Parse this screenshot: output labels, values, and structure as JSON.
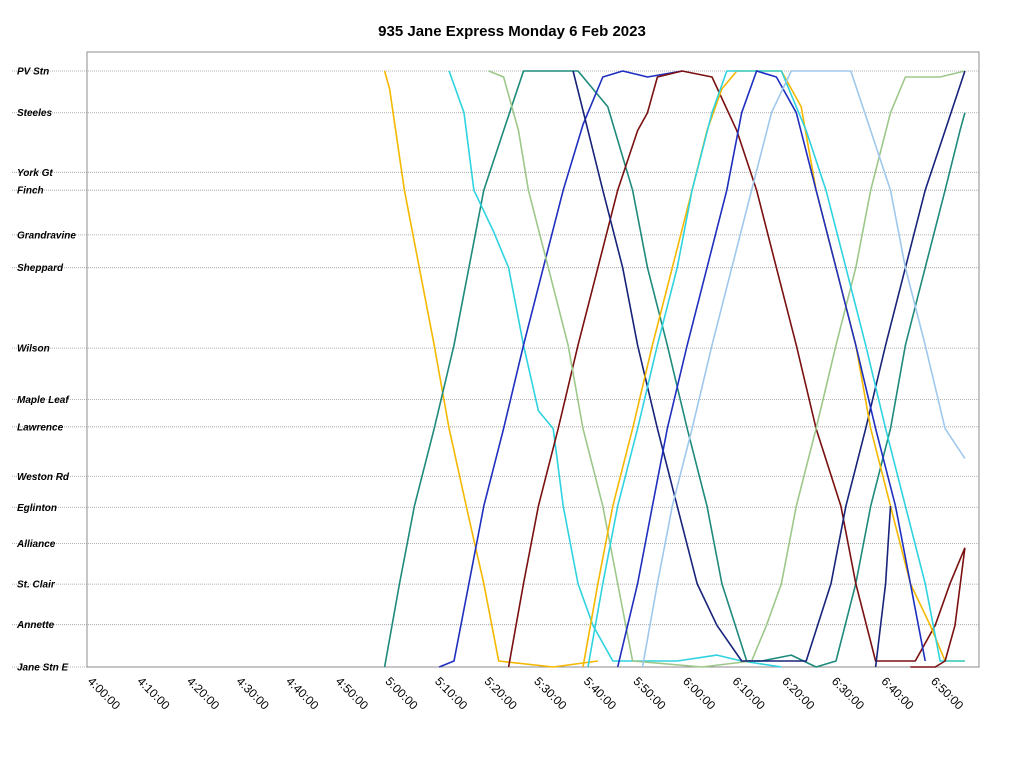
{
  "chart_data": {
    "type": "line",
    "title": "935 Jane Express Monday 6 Feb 2023",
    "xlabel": "",
    "ylabel": "",
    "x_axis": {
      "min": "4:00:00",
      "max": "6:57:00",
      "tick_labels": [
        "4:00:00",
        "4:10:00",
        "4:20:00",
        "4:30:00",
        "4:40:00",
        "4:50:00",
        "5:00:00",
        "5:10:00",
        "5:20:00",
        "5:30:00",
        "5:40:00",
        "5:50:00",
        "6:00:00",
        "6:10:00",
        "6:20:00",
        "6:30:00",
        "6:40:00",
        "6:50:00"
      ]
    },
    "grid": true,
    "legend": "none",
    "stops": [
      {
        "name": "PV Stn",
        "pos": 0
      },
      {
        "name": "Steeles",
        "pos": 0.07
      },
      {
        "name": "York Gt",
        "pos": 0.17
      },
      {
        "name": "Finch",
        "pos": 0.2
      },
      {
        "name": "Grandravine",
        "pos": 0.275
      },
      {
        "name": "Sheppard",
        "pos": 0.33
      },
      {
        "name": "Wilson",
        "pos": 0.465
      },
      {
        "name": "Maple Leaf",
        "pos": 0.551
      },
      {
        "name": "Lawrence",
        "pos": 0.597
      },
      {
        "name": "Weston Rd",
        "pos": 0.68
      },
      {
        "name": "Eglinton",
        "pos": 0.732
      },
      {
        "name": "Alliance",
        "pos": 0.793
      },
      {
        "name": "St. Clair",
        "pos": 0.861
      },
      {
        "name": "Annette",
        "pos": 0.929
      },
      {
        "name": "Jane Stn E",
        "pos": 1
      }
    ],
    "series": [
      {
        "color": "#f5b800",
        "points": [
          [
            "5:00:00",
            0
          ],
          [
            "5:01:00",
            0.03
          ],
          [
            "5:04:00",
            0.2
          ],
          [
            "5:07:00",
            0.33
          ],
          [
            "5:10:00",
            0.46
          ],
          [
            "5:13:00",
            0.6
          ],
          [
            "5:17:00",
            0.75
          ],
          [
            "5:20:00",
            0.86
          ],
          [
            "5:23:00",
            0.99
          ],
          [
            "5:34:00",
            1
          ],
          [
            "5:43:00",
            0.99
          ]
        ]
      },
      {
        "color": "#1f8a7c",
        "points": [
          [
            "5:00:00",
            1
          ],
          [
            "5:03:00",
            0.86
          ],
          [
            "5:06:00",
            0.73
          ],
          [
            "5:10:00",
            0.6
          ],
          [
            "5:14:00",
            0.46
          ],
          [
            "5:17:00",
            0.33
          ],
          [
            "5:20:00",
            0.2
          ],
          [
            "5:24:00",
            0.1
          ],
          [
            "5:28:00",
            0
          ],
          [
            "5:39:00",
            0
          ],
          [
            "5:45:00",
            0.06
          ],
          [
            "5:50:00",
            0.2
          ],
          [
            "5:53:00",
            0.33
          ],
          [
            "5:57:00",
            0.46
          ],
          [
            "6:01:00",
            0.6
          ],
          [
            "6:05:00",
            0.73
          ],
          [
            "6:08:00",
            0.86
          ],
          [
            "6:13:00",
            0.99
          ],
          [
            "6:16:00",
            0.99
          ],
          [
            "6:22:00",
            0.98
          ],
          [
            "6:27:00",
            1
          ],
          [
            "6:31:00",
            0.99
          ],
          [
            "6:35:00",
            0.86
          ],
          [
            "6:38:00",
            0.73
          ],
          [
            "6:42:00",
            0.6
          ],
          [
            "6:45:00",
            0.46
          ],
          [
            "6:49:00",
            0.33
          ],
          [
            "6:53:00",
            0.2
          ],
          [
            "6:56:00",
            0.1
          ],
          [
            "6:57:00",
            0.07
          ]
        ]
      },
      {
        "color": "#2fd3e0",
        "points": [
          [
            "5:13:00",
            0
          ],
          [
            "5:16:00",
            0.07
          ],
          [
            "5:18:00",
            0.2
          ],
          [
            "5:22:00",
            0.27
          ],
          [
            "5:25:00",
            0.33
          ],
          [
            "5:28:00",
            0.46
          ],
          [
            "5:31:00",
            0.57
          ],
          [
            "5:34:00",
            0.6
          ],
          [
            "5:36:00",
            0.73
          ],
          [
            "5:39:00",
            0.86
          ],
          [
            "5:42:00",
            0.93
          ],
          [
            "5:46:00",
            0.99
          ],
          [
            "5:59:00",
            0.99
          ],
          [
            "6:07:00",
            0.98
          ],
          [
            "6:12:00",
            0.99
          ],
          [
            "6:20:00",
            1
          ]
        ]
      },
      {
        "color": "#1e2fbf",
        "points": [
          [
            "5:11:00",
            1
          ],
          [
            "5:14:00",
            0.99
          ],
          [
            "5:17:00",
            0.86
          ],
          [
            "5:20:00",
            0.73
          ],
          [
            "5:24:00",
            0.6
          ],
          [
            "5:28:00",
            0.46
          ],
          [
            "5:32:00",
            0.33
          ],
          [
            "5:36:00",
            0.2
          ],
          [
            "5:40:00",
            0.09
          ],
          [
            "5:44:00",
            0.01
          ],
          [
            "5:48:00",
            0
          ],
          [
            "5:53:00",
            0.01
          ],
          [
            "6:00:00",
            0
          ]
        ]
      },
      {
        "color": "#7a1010",
        "points": [
          [
            "5:25:00",
            1
          ],
          [
            "5:28:00",
            0.86
          ],
          [
            "5:31:00",
            0.73
          ],
          [
            "5:35:00",
            0.6
          ],
          [
            "5:39:00",
            0.46
          ],
          [
            "5:43:00",
            0.33
          ],
          [
            "5:47:00",
            0.2
          ],
          [
            "5:51:00",
            0.1
          ],
          [
            "5:53:00",
            0.07
          ],
          [
            "5:55:00",
            0.01
          ],
          [
            "6:00:00",
            0
          ],
          [
            "6:06:00",
            0.01
          ],
          [
            "6:11:00",
            0.1
          ],
          [
            "6:15:00",
            0.2
          ],
          [
            "6:19:00",
            0.33
          ],
          [
            "6:23:00",
            0.46
          ],
          [
            "6:27:00",
            0.6
          ],
          [
            "6:32:00",
            0.73
          ],
          [
            "6:35:00",
            0.86
          ],
          [
            "6:39:00",
            0.99
          ],
          [
            "6:47:00",
            0.99
          ],
          [
            "6:51:00",
            0.93
          ],
          [
            "6:54:00",
            0.86
          ],
          [
            "6:57:00",
            0.8
          ]
        ]
      },
      {
        "color": "#9dc88a",
        "points": [
          [
            "5:21:00",
            0
          ],
          [
            "5:24:00",
            0.01
          ],
          [
            "5:27:00",
            0.1
          ],
          [
            "5:29:00",
            0.2
          ],
          [
            "5:33:00",
            0.33
          ],
          [
            "5:37:00",
            0.46
          ],
          [
            "5:40:00",
            0.6
          ],
          [
            "5:44:00",
            0.73
          ],
          [
            "5:47:00",
            0.86
          ],
          [
            "5:50:00",
            0.99
          ],
          [
            "6:04:00",
            1
          ],
          [
            "6:14:00",
            0.99
          ],
          [
            "6:17:00",
            0.93
          ],
          [
            "6:20:00",
            0.86
          ],
          [
            "6:23:00",
            0.73
          ],
          [
            "6:27:00",
            0.6
          ],
          [
            "6:31:00",
            0.46
          ],
          [
            "6:35:00",
            0.33
          ],
          [
            "6:38:00",
            0.2
          ],
          [
            "6:42:00",
            0.07
          ],
          [
            "6:45:00",
            0.01
          ],
          [
            "6:52:00",
            0.01
          ],
          [
            "6:57:00",
            0
          ]
        ]
      },
      {
        "color": "#18237a",
        "points": [
          [
            "5:38:00",
            0
          ],
          [
            "5:41:00",
            0.1
          ],
          [
            "5:44:00",
            0.2
          ],
          [
            "5:48:00",
            0.33
          ],
          [
            "5:51:00",
            0.46
          ],
          [
            "5:55:00",
            0.6
          ],
          [
            "5:59:00",
            0.73
          ],
          [
            "6:03:00",
            0.86
          ],
          [
            "6:07:00",
            0.93
          ],
          [
            "6:12:00",
            0.99
          ],
          [
            "6:25:00",
            0.99
          ],
          [
            "6:30:00",
            0.86
          ],
          [
            "6:33:00",
            0.73
          ],
          [
            "6:37:00",
            0.6
          ],
          [
            "6:41:00",
            0.46
          ],
          [
            "6:45:00",
            0.33
          ],
          [
            "6:49:00",
            0.2
          ],
          [
            "6:53:00",
            0.1
          ],
          [
            "6:57:00",
            0
          ]
        ]
      },
      {
        "color": "#f5b800",
        "points": [
          [
            "5:40:00",
            1
          ],
          [
            "5:43:00",
            0.86
          ],
          [
            "5:46:00",
            0.73
          ],
          [
            "5:50:00",
            0.6
          ],
          [
            "5:54:00",
            0.46
          ],
          [
            "5:58:00",
            0.33
          ],
          [
            "6:02:00",
            0.2
          ],
          [
            "6:05:00",
            0.1
          ],
          [
            "6:08:00",
            0.03
          ],
          [
            "6:11:00",
            0
          ],
          [
            "6:20:00",
            0
          ],
          [
            "6:24:00",
            0.06
          ],
          [
            "6:27:00",
            0.2
          ],
          [
            "6:31:00",
            0.33
          ],
          [
            "6:35:00",
            0.46
          ],
          [
            "6:38:00",
            0.6
          ],
          [
            "6:42:00",
            0.73
          ],
          [
            "6:46:00",
            0.86
          ],
          [
            "6:50:00",
            0.93
          ],
          [
            "6:53:00",
            0.99
          ],
          [
            "6:57:00",
            0.99
          ]
        ]
      },
      {
        "color": "#2fd3e0",
        "points": [
          [
            "5:41:00",
            1
          ],
          [
            "5:44:00",
            0.86
          ],
          [
            "5:47:00",
            0.73
          ],
          [
            "5:51:00",
            0.6
          ],
          [
            "5:55:00",
            0.46
          ],
          [
            "5:59:00",
            0.33
          ],
          [
            "6:02:00",
            0.2
          ],
          [
            "6:06:00",
            0.07
          ],
          [
            "6:09:00",
            0
          ],
          [
            "6:20:00",
            0
          ],
          [
            "6:25:00",
            0.1
          ],
          [
            "6:29:00",
            0.2
          ],
          [
            "6:33:00",
            0.33
          ],
          [
            "6:37:00",
            0.46
          ],
          [
            "6:41:00",
            0.6
          ],
          [
            "6:45:00",
            0.73
          ],
          [
            "6:49:00",
            0.86
          ],
          [
            "6:52:00",
            0.99
          ],
          [
            "6:57:00",
            0.99
          ]
        ]
      },
      {
        "color": "#1e2fbf",
        "points": [
          [
            "5:47:00",
            1
          ],
          [
            "5:51:00",
            0.86
          ],
          [
            "5:54:00",
            0.73
          ],
          [
            "5:57:00",
            0.6
          ],
          [
            "6:01:00",
            0.46
          ],
          [
            "6:05:00",
            0.33
          ],
          [
            "6:09:00",
            0.2
          ],
          [
            "6:12:00",
            0.07
          ],
          [
            "6:15:00",
            0
          ],
          [
            "6:19:00",
            0.01
          ],
          [
            "6:23:00",
            0.07
          ],
          [
            "6:27:00",
            0.2
          ],
          [
            "6:31:00",
            0.33
          ],
          [
            "6:35:00",
            0.46
          ],
          [
            "6:39:00",
            0.6
          ],
          [
            "6:43:00",
            0.73
          ],
          [
            "6:46:00",
            0.86
          ],
          [
            "6:49:00",
            0.99
          ]
        ]
      },
      {
        "color": "#a0c8ec",
        "points": [
          [
            "5:52:00",
            1
          ],
          [
            "5:55:00",
            0.86
          ],
          [
            "5:58:00",
            0.73
          ],
          [
            "6:02:00",
            0.6
          ],
          [
            "6:06:00",
            0.46
          ],
          [
            "6:10:00",
            0.33
          ],
          [
            "6:14:00",
            0.2
          ],
          [
            "6:18:00",
            0.07
          ],
          [
            "6:22:00",
            0
          ],
          [
            "6:34:00",
            0
          ],
          [
            "6:38:00",
            0.1
          ],
          [
            "6:42:00",
            0.2
          ],
          [
            "6:45:00",
            0.33
          ],
          [
            "6:49:00",
            0.46
          ],
          [
            "6:53:00",
            0.6
          ],
          [
            "6:57:00",
            0.65
          ]
        ]
      },
      {
        "color": "#18237a",
        "points": [
          [
            "6:42:00",
            0.73
          ],
          [
            "6:41:00",
            0.86
          ],
          [
            "6:40:00",
            0.93
          ],
          [
            "6:39:00",
            1
          ]
        ]
      },
      {
        "color": "#7a1010",
        "points": [
          [
            "6:46:00",
            1
          ],
          [
            "6:51:00",
            1
          ],
          [
            "6:53:00",
            0.99
          ],
          [
            "6:55:00",
            0.93
          ],
          [
            "6:57:00",
            0.8
          ]
        ]
      }
    ]
  }
}
